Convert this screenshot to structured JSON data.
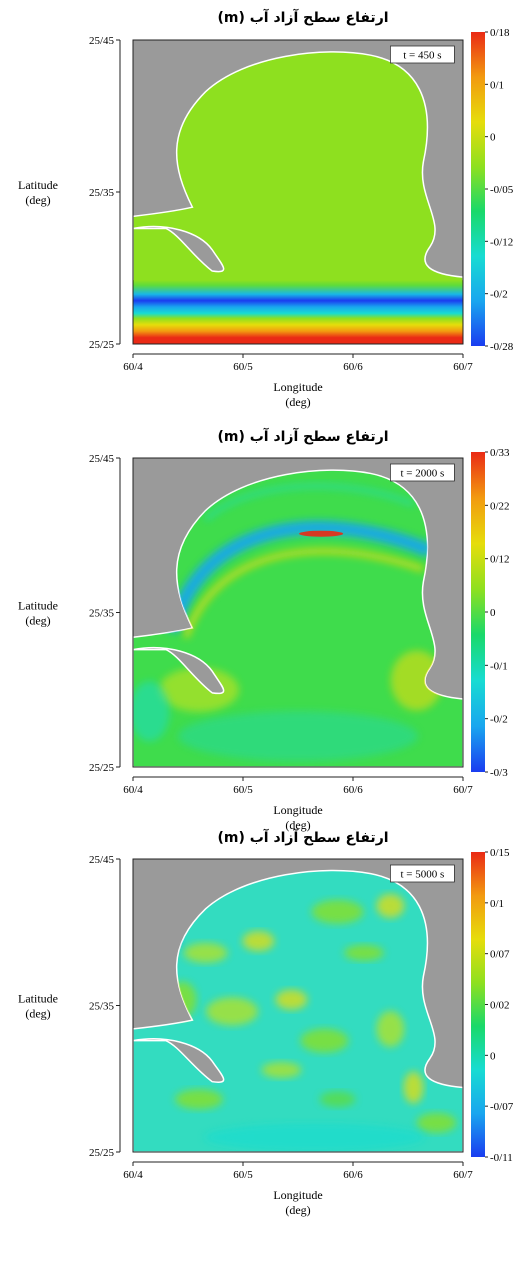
{
  "chart_data": [
    {
      "type": "heatmap",
      "title": "ارتفاع سطح آزاد آب (m)",
      "time_label": "t = 450 s",
      "xlabel": "Longitude",
      "xunit": "(deg)",
      "ylabel": "Latitude",
      "yunit": "(deg)",
      "x_ticks": [
        "60/4",
        "60/5",
        "60/6",
        "60/7"
      ],
      "y_ticks": [
        "25/25",
        "25/35",
        "25/45"
      ],
      "colorbar_ticks": [
        "0/18",
        "0/1",
        "0",
        "-0/05",
        "-0/12",
        "-0/2",
        "-0/28"
      ],
      "field_description": "uniform green field over the basin with horizontal bands of red, yellow and blue along the southern boundary"
    },
    {
      "type": "heatmap",
      "title": "ارتفاع سطح آزاد آب (m)",
      "time_label": "t = 2000 s",
      "xlabel": "Longitude",
      "xunit": "(deg)",
      "ylabel": "Latitude",
      "yunit": "(deg)",
      "x_ticks": [
        "60/4",
        "60/5",
        "60/6",
        "60/7"
      ],
      "y_ticks": [
        "25/25",
        "25/35",
        "25/45"
      ],
      "colorbar_ticks": [
        "0/33",
        "0/22",
        "0/12",
        "0",
        "-0/1",
        "-0/2",
        "-0/3"
      ],
      "field_description": "arc shaped wave band of blue and red crossing the upper basin over a mostly green field"
    },
    {
      "type": "heatmap",
      "title": "ارتفاع سطح آزاد آب (m)",
      "time_label": "t = 5000 s",
      "xlabel": "Longitude",
      "xunit": "(deg)",
      "ylabel": "Latitude",
      "yunit": "(deg)",
      "x_ticks": [
        "60/4",
        "60/5",
        "60/6",
        "60/7"
      ],
      "y_ticks": [
        "25/25",
        "25/35",
        "25/45"
      ],
      "colorbar_ticks": [
        "0/15",
        "0/1",
        "0/07",
        "0/02",
        "0",
        "-0/07",
        "-0/11"
      ],
      "field_description": "mottled cyan and light-green pattern with scattered yellow patches across the basin"
    }
  ],
  "colors": {
    "land": "#9a9a9a",
    "colormap": [
      "#1a3cf0",
      "#19a6ef",
      "#18dcd2",
      "#19d96a",
      "#8ee01f",
      "#e6dd0b",
      "#f29a10",
      "#ea2a15"
    ]
  }
}
